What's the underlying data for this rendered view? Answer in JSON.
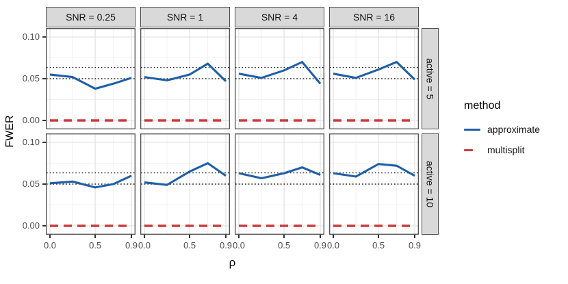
{
  "figure": {
    "y_axis_title": "FWER",
    "x_axis_title": "ρ"
  },
  "legend": {
    "title": "method",
    "items": [
      {
        "name": "approximate",
        "label": "approximate",
        "color": "#1f5fa8",
        "style": "solid"
      },
      {
        "name": "multisplit",
        "label": "multisplit",
        "color": "#cc3b3c",
        "style": "dashed"
      }
    ]
  },
  "chart_data": {
    "type": "line",
    "title": "",
    "xlabel": "ρ",
    "ylabel": "FWER",
    "xlim": [
      0,
      0.9
    ],
    "ylim": [
      0,
      0.1
    ],
    "grid": true,
    "legend_position": "right",
    "x_ticks": {
      "labels": [
        "0.0",
        "0.5",
        "0.9"
      ],
      "values": [
        0.0,
        0.5,
        0.9
      ]
    },
    "y_ticks": {
      "labels": [
        "0.10",
        "0.05",
        "0.00"
      ],
      "values": [
        0.1,
        0.05,
        0.0
      ]
    },
    "x_minor_gridlines": [
      0.25,
      0.7
    ],
    "y_minor_gridlines": [
      0.025,
      0.075
    ],
    "reference_lines_y": [
      0.05,
      0.0635
    ],
    "facet_col_labels": [
      "SNR = 0.25",
      "SNR = 1",
      "SNR = 4",
      "SNR = 16"
    ],
    "facet_row_labels": [
      "active = 5",
      "active = 10"
    ],
    "x": [
      0.0,
      0.25,
      0.5,
      0.7,
      0.9
    ],
    "series": [
      {
        "name": "approximate",
        "color": "#1f5fa8",
        "style": "solid",
        "panels": [
          {
            "row": "active = 5",
            "col": "SNR = 0.25",
            "y": [
              0.055,
              0.052,
              0.038,
              0.044,
              0.051
            ]
          },
          {
            "row": "active = 5",
            "col": "SNR = 1",
            "y": [
              0.052,
              0.048,
              0.055,
              0.068,
              0.047
            ]
          },
          {
            "row": "active = 5",
            "col": "SNR = 4",
            "y": [
              0.056,
              0.051,
              0.06,
              0.07,
              0.044
            ]
          },
          {
            "row": "active = 5",
            "col": "SNR = 16",
            "y": [
              0.056,
              0.051,
              0.061,
              0.07,
              0.049
            ]
          },
          {
            "row": "active = 10",
            "col": "SNR = 0.25",
            "y": [
              0.051,
              0.053,
              0.046,
              0.05,
              0.06
            ]
          },
          {
            "row": "active = 10",
            "col": "SNR = 1",
            "y": [
              0.052,
              0.049,
              0.065,
              0.075,
              0.06
            ]
          },
          {
            "row": "active = 10",
            "col": "SNR = 4",
            "y": [
              0.063,
              0.057,
              0.063,
              0.07,
              0.061
            ]
          },
          {
            "row": "active = 10",
            "col": "SNR = 16",
            "y": [
              0.063,
              0.059,
              0.074,
              0.072,
              0.06
            ]
          }
        ]
      },
      {
        "name": "multisplit",
        "color": "#cc3b3c",
        "style": "dashed",
        "panels": [
          {
            "row": "active = 5",
            "col": "SNR = 0.25",
            "y": [
              0,
              0,
              0,
              0,
              0
            ]
          },
          {
            "row": "active = 5",
            "col": "SNR = 1",
            "y": [
              0,
              0,
              0,
              0,
              0
            ]
          },
          {
            "row": "active = 5",
            "col": "SNR = 4",
            "y": [
              0,
              0,
              0,
              0,
              0
            ]
          },
          {
            "row": "active = 5",
            "col": "SNR = 16",
            "y": [
              0,
              0,
              0,
              0,
              0
            ]
          },
          {
            "row": "active = 10",
            "col": "SNR = 0.25",
            "y": [
              0,
              0,
              0,
              0,
              0
            ]
          },
          {
            "row": "active = 10",
            "col": "SNR = 1",
            "y": [
              0,
              0,
              0,
              0,
              0
            ]
          },
          {
            "row": "active = 10",
            "col": "SNR = 4",
            "y": [
              0,
              0,
              0,
              0,
              0
            ]
          },
          {
            "row": "active = 10",
            "col": "SNR = 16",
            "y": [
              0,
              0,
              0,
              0,
              0
            ]
          }
        ]
      }
    ]
  }
}
